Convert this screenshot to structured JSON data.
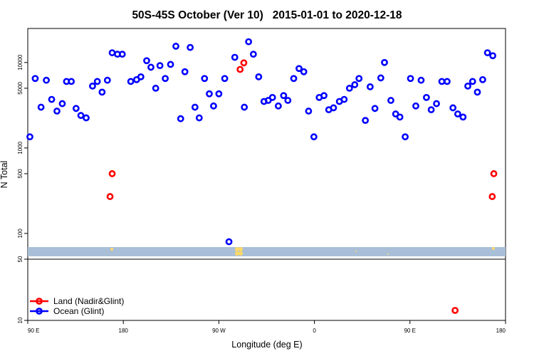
{
  "chart_data": {
    "type": "scatter",
    "title": "50S-45S October (Ver 10)",
    "date_range": "2015-01-01 to 2020-12-18",
    "xlabel": "Longitude (deg E)",
    "ylabel": "N Total",
    "x_tick_labels": [
      "90 E",
      "180",
      "90 W",
      "0",
      "90 E",
      "180"
    ],
    "x_ticks": [
      90,
      180,
      270,
      360,
      450,
      540
    ],
    "xlim": [
      90,
      540
    ],
    "y_scale": "log",
    "upper_panel": {
      "ylim": [
        50,
        25000
      ],
      "y_ticks": [
        50,
        100,
        500,
        1000,
        5000,
        10000
      ],
      "y_tick_labels": [
        "50",
        "100",
        "500",
        "1000",
        "5000",
        "10000"
      ]
    },
    "lower_panel": {
      "ylim": [
        10,
        50
      ],
      "y_ticks": [
        10,
        50
      ],
      "y_tick_labels": [
        "10",
        "50"
      ]
    },
    "grid": false,
    "legend_position": "bottom-left",
    "series": [
      {
        "name": "Land (Nadir&Glint)",
        "color": "#ff0000",
        "points": [
          [
            167.5,
            270
          ],
          [
            169.5,
            500
          ],
          [
            290,
            8300
          ],
          [
            293.5,
            9900
          ],
          [
            492.5,
            13
          ],
          [
            527.5,
            270
          ],
          [
            529,
            500
          ]
        ]
      },
      {
        "name": "Ocean (Glint)",
        "color": "#0000ff",
        "points": [
          [
            92,
            1350
          ],
          [
            97,
            6500
          ],
          [
            102.5,
            3000
          ],
          [
            107.5,
            6200
          ],
          [
            112.5,
            3700
          ],
          [
            117.5,
            2700
          ],
          [
            122.5,
            3300
          ],
          [
            126.5,
            6000
          ],
          [
            131,
            6000
          ],
          [
            135.5,
            2900
          ],
          [
            140,
            2400
          ],
          [
            145,
            2250
          ],
          [
            151,
            5300
          ],
          [
            155.5,
            6000
          ],
          [
            160,
            4500
          ],
          [
            165,
            6200
          ],
          [
            169.5,
            13000
          ],
          [
            174.5,
            12500
          ],
          [
            179,
            12500
          ],
          [
            187,
            6000
          ],
          [
            192.5,
            6300
          ],
          [
            196.5,
            6800
          ],
          [
            202,
            10500
          ],
          [
            206,
            8800
          ],
          [
            210.5,
            5000
          ],
          [
            214.5,
            9200
          ],
          [
            219.5,
            6500
          ],
          [
            224.5,
            9500
          ],
          [
            229.5,
            15500
          ],
          [
            234,
            2200
          ],
          [
            238,
            7800
          ],
          [
            243,
            15000
          ],
          [
            247.5,
            3000
          ],
          [
            251.5,
            2250
          ],
          [
            256.5,
            6500
          ],
          [
            261,
            4300
          ],
          [
            265,
            3100
          ],
          [
            270,
            4300
          ],
          [
            275.5,
            6500
          ],
          [
            279.5,
            80
          ],
          [
            285,
            11500
          ],
          [
            294,
            3000
          ],
          [
            298,
            17500
          ],
          [
            302.5,
            12500
          ],
          [
            307.5,
            6800
          ],
          [
            312.5,
            3500
          ],
          [
            316.5,
            3600
          ],
          [
            320.5,
            3900
          ],
          [
            326,
            3100
          ],
          [
            331,
            4100
          ],
          [
            335,
            3600
          ],
          [
            340.5,
            6500
          ],
          [
            345.5,
            8500
          ],
          [
            350,
            7800
          ],
          [
            354.5,
            2700
          ],
          [
            359.5,
            1350
          ],
          [
            364.5,
            3900
          ],
          [
            369,
            4100
          ],
          [
            373.5,
            2800
          ],
          [
            378,
            2950
          ],
          [
            383.5,
            3500
          ],
          [
            388,
            3700
          ],
          [
            393,
            5000
          ],
          [
            398,
            5500
          ],
          [
            402,
            6500
          ],
          [
            408,
            2100
          ],
          [
            412.5,
            5200
          ],
          [
            417,
            2900
          ],
          [
            422.5,
            6600
          ],
          [
            426,
            10000
          ],
          [
            432,
            3600
          ],
          [
            436.5,
            2500
          ],
          [
            440.5,
            2300
          ],
          [
            445.5,
            1350
          ],
          [
            450.5,
            6500
          ],
          [
            455.5,
            3100
          ],
          [
            460.5,
            6200
          ],
          [
            465.5,
            3900
          ],
          [
            470,
            2800
          ],
          [
            475,
            3300
          ],
          [
            480,
            6000
          ],
          [
            485,
            6000
          ],
          [
            490.5,
            2950
          ],
          [
            495,
            2500
          ],
          [
            500,
            2300
          ],
          [
            504.5,
            5300
          ],
          [
            509,
            6000
          ],
          [
            513.5,
            4500
          ],
          [
            518.5,
            6300
          ],
          [
            523,
            13000
          ],
          [
            528,
            12000
          ]
        ]
      }
    ]
  }
}
